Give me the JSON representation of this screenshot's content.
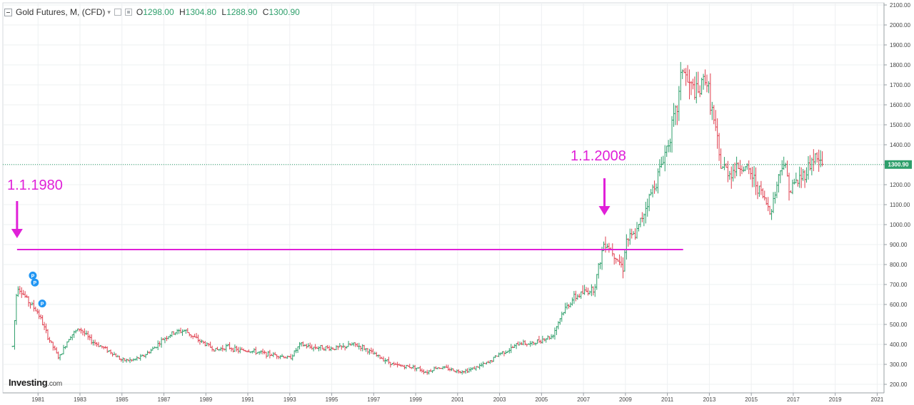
{
  "header": {
    "symbol": "Gold Futures, M, (CFD)",
    "open_label": "O",
    "open_value": "1298.00",
    "high_label": "H",
    "high_value": "1304.80",
    "low_label": "L",
    "low_value": "1288.90",
    "close_label": "C",
    "close_value": "1300.90"
  },
  "annotations": {
    "left_label": "1.1.1980",
    "right_label": "1.1.2008"
  },
  "price_tag": "1300.90",
  "logo": {
    "main": "Investing",
    "suffix": ".com"
  },
  "colors": {
    "up": "#2e9f6b",
    "down": "#e0404f",
    "annotation": "#e020d8",
    "price_line": "#2e9f6b",
    "marker": "#2196f3"
  },
  "chart_data": {
    "type": "ohlc-bar",
    "title": "Gold Futures, M, (CFD)",
    "xlabel": "",
    "ylabel": "",
    "x_ticks": [
      "1981",
      "1983",
      "1985",
      "1987",
      "1989",
      "1991",
      "1993",
      "1995",
      "1997",
      "1999",
      "2001",
      "2003",
      "2005",
      "2007",
      "2009",
      "2011",
      "2013",
      "2015",
      "2017",
      "2019",
      "2021"
    ],
    "y_ticks": [
      "200.00",
      "300.00",
      "400.00",
      "500.00",
      "600.00",
      "700.00",
      "800.00",
      "900.00",
      "1000.00",
      "1100.00",
      "1200.00",
      "1300.00",
      "1400.00",
      "1500.00",
      "1600.00",
      "1700.00",
      "1800.00",
      "1900.00",
      "2000.00",
      "2100.00"
    ],
    "ylim": [
      170,
      2110
    ],
    "xlim": [
      1979.8,
      2021.7
    ],
    "price_line": 1300.9,
    "horizontal_level": {
      "value": 875,
      "from": 1980.0,
      "to": 2011.75
    },
    "arrows": [
      {
        "x": 1980.0
      },
      {
        "x": 2008.0
      }
    ],
    "markers": [
      {
        "x": 1980.75,
        "y": 745,
        "label": "P"
      },
      {
        "x": 1980.85,
        "y": 710,
        "label": "P"
      },
      {
        "x": 1981.2,
        "y": 605,
        "label": "P"
      }
    ],
    "series": [
      {
        "name": "Gold Futures",
        "points": [
          [
            1979.8,
            390
          ],
          [
            1980.0,
            700
          ],
          [
            1980.5,
            620
          ],
          [
            1981.0,
            560
          ],
          [
            1981.5,
            430
          ],
          [
            1982.0,
            330
          ],
          [
            1982.5,
            440
          ],
          [
            1983.0,
            480
          ],
          [
            1983.5,
            420
          ],
          [
            1984.0,
            390
          ],
          [
            1984.5,
            360
          ],
          [
            1985.0,
            320
          ],
          [
            1985.5,
            320
          ],
          [
            1986.0,
            340
          ],
          [
            1986.5,
            380
          ],
          [
            1987.0,
            430
          ],
          [
            1987.5,
            460
          ],
          [
            1988.0,
            470
          ],
          [
            1988.5,
            430
          ],
          [
            1989.0,
            400
          ],
          [
            1989.5,
            370
          ],
          [
            1990.0,
            390
          ],
          [
            1990.5,
            370
          ],
          [
            1991.0,
            370
          ],
          [
            1991.5,
            360
          ],
          [
            1992.0,
            350
          ],
          [
            1992.5,
            345
          ],
          [
            1993.0,
            330
          ],
          [
            1993.5,
            400
          ],
          [
            1994.0,
            385
          ],
          [
            1994.5,
            385
          ],
          [
            1995.0,
            380
          ],
          [
            1995.5,
            385
          ],
          [
            1996.0,
            400
          ],
          [
            1996.5,
            385
          ],
          [
            1997.0,
            350
          ],
          [
            1997.5,
            325
          ],
          [
            1998.0,
            295
          ],
          [
            1998.5,
            290
          ],
          [
            1999.0,
            285
          ],
          [
            1999.5,
            260
          ],
          [
            2000.0,
            285
          ],
          [
            2000.5,
            280
          ],
          [
            2001.0,
            265
          ],
          [
            2001.5,
            270
          ],
          [
            2002.0,
            290
          ],
          [
            2002.5,
            310
          ],
          [
            2003.0,
            355
          ],
          [
            2003.5,
            375
          ],
          [
            2004.0,
            410
          ],
          [
            2004.5,
            400
          ],
          [
            2005.0,
            425
          ],
          [
            2005.5,
            440
          ],
          [
            2006.0,
            560
          ],
          [
            2006.5,
            630
          ],
          [
            2007.0,
            660
          ],
          [
            2007.5,
            680
          ],
          [
            2008.0,
            920
          ],
          [
            2008.5,
            850
          ],
          [
            2008.9,
            780
          ],
          [
            2009.0,
            920
          ],
          [
            2009.5,
            950
          ],
          [
            2010.0,
            1100
          ],
          [
            2010.5,
            1230
          ],
          [
            2011.0,
            1400
          ],
          [
            2011.5,
            1600
          ],
          [
            2011.7,
            1800
          ],
          [
            2012.0,
            1700
          ],
          [
            2012.5,
            1650
          ],
          [
            2012.8,
            1750
          ],
          [
            2013.0,
            1650
          ],
          [
            2013.4,
            1400
          ],
          [
            2013.5,
            1300
          ],
          [
            2014.0,
            1260
          ],
          [
            2014.5,
            1300
          ],
          [
            2015.0,
            1250
          ],
          [
            2015.5,
            1150
          ],
          [
            2015.9,
            1070
          ],
          [
            2016.0,
            1100
          ],
          [
            2016.5,
            1330
          ],
          [
            2016.9,
            1160
          ],
          [
            2017.0,
            1200
          ],
          [
            2017.5,
            1250
          ],
          [
            2018.0,
            1340
          ],
          [
            2018.4,
            1300
          ]
        ]
      }
    ]
  }
}
